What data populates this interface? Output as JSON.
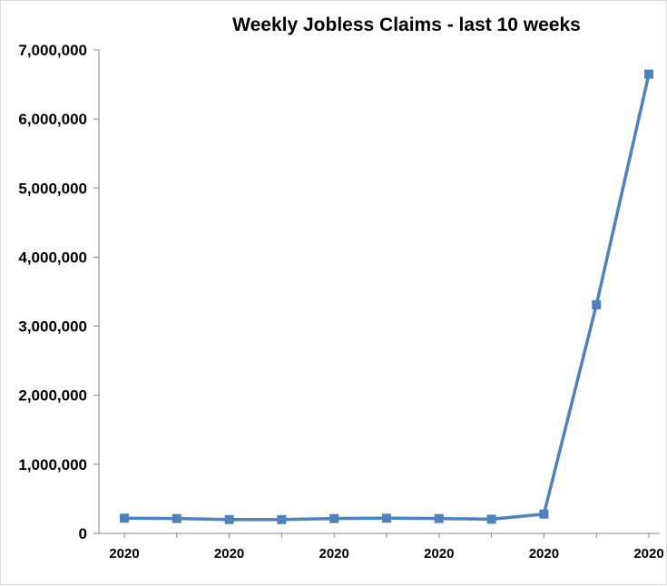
{
  "chart_data": {
    "type": "line",
    "title": "Weekly Jobless Claims - last 10 weeks",
    "xlabel": "",
    "ylabel": "",
    "categories": [
      "2020",
      "",
      "2020",
      "",
      "2020",
      "",
      "2020",
      "",
      "2020",
      "",
      "2020"
    ],
    "series": [
      {
        "name": "",
        "color": "#4f81bd",
        "marker": "square",
        "values": [
          220000,
          215000,
          200000,
          200000,
          215000,
          220000,
          215000,
          205000,
          280000,
          3310000,
          6650000
        ]
      }
    ],
    "ylim": [
      0,
      7000000
    ],
    "yticks": [
      0,
      1000000,
      2000000,
      3000000,
      4000000,
      5000000,
      6000000,
      7000000
    ],
    "ytick_labels": [
      "0",
      "1,000,000",
      "2,000,000",
      "3,000,000",
      "4,000,000",
      "5,000,000",
      "6,000,000",
      "7,000,000"
    ],
    "grid": false,
    "legend": "none"
  }
}
